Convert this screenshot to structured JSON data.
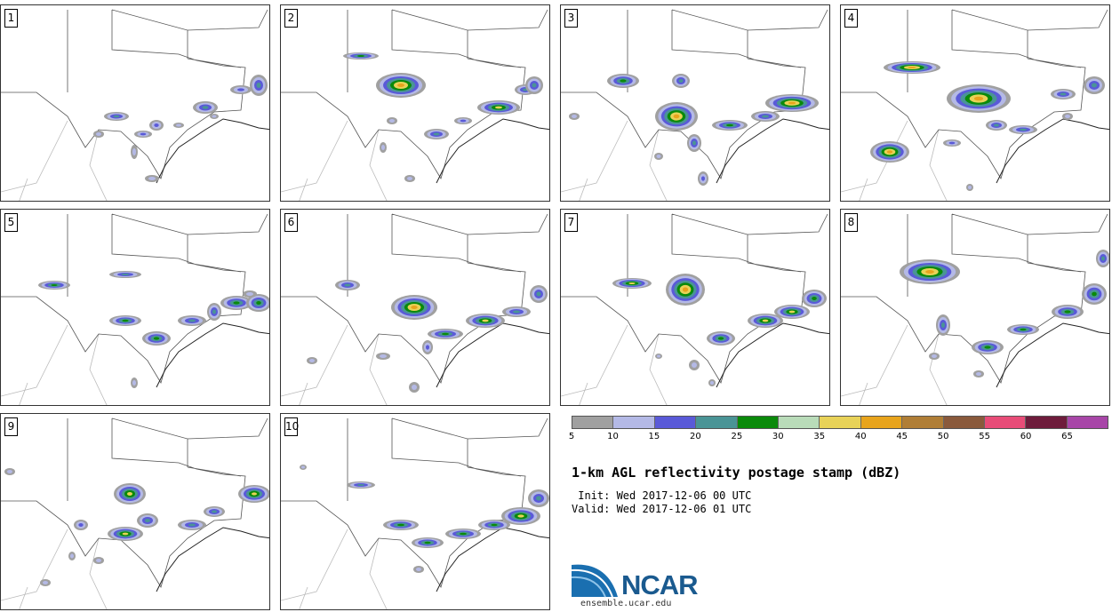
{
  "panels": [
    {
      "label": "1",
      "blobs": [
        [
          130,
          130,
          14,
          5
        ],
        [
          160,
          150,
          10,
          4
        ],
        [
          175,
          140,
          8,
          6
        ],
        [
          230,
          120,
          14,
          7
        ],
        [
          270,
          100,
          12,
          5
        ],
        [
          290,
          95,
          10,
          12
        ],
        [
          150,
          170,
          4,
          8
        ],
        [
          170,
          200,
          8,
          4
        ],
        [
          110,
          150,
          6,
          4
        ],
        [
          240,
          130,
          5,
          3
        ],
        [
          200,
          140,
          6,
          3
        ]
      ]
    },
    {
      "label": "2",
      "blobs": [
        [
          405,
          62,
          20,
          4
        ],
        [
          450,
          95,
          28,
          14
        ],
        [
          440,
          135,
          6,
          4
        ],
        [
          490,
          150,
          14,
          6
        ],
        [
          520,
          135,
          10,
          4
        ],
        [
          560,
          120,
          24,
          8
        ],
        [
          590,
          100,
          12,
          6
        ],
        [
          600,
          95,
          10,
          10
        ],
        [
          460,
          200,
          6,
          4
        ],
        [
          430,
          165,
          4,
          6
        ]
      ]
    },
    {
      "label": "3",
      "blobs": [
        [
          700,
          90,
          18,
          8
        ],
        [
          765,
          90,
          10,
          8
        ],
        [
          760,
          130,
          24,
          16
        ],
        [
          780,
          160,
          8,
          10
        ],
        [
          820,
          140,
          20,
          6
        ],
        [
          860,
          130,
          16,
          6
        ],
        [
          890,
          115,
          30,
          10
        ],
        [
          790,
          200,
          6,
          8
        ],
        [
          740,
          175,
          5,
          4
        ],
        [
          645,
          130,
          6,
          4
        ]
      ]
    },
    {
      "label": "4",
      "blobs": [
        [
          1025,
          75,
          32,
          7
        ],
        [
          1100,
          110,
          36,
          16
        ],
        [
          1120,
          140,
          12,
          6
        ],
        [
          1150,
          145,
          16,
          5
        ],
        [
          1195,
          105,
          14,
          6
        ],
        [
          1230,
          95,
          12,
          10
        ],
        [
          1000,
          170,
          22,
          12
        ],
        [
          1070,
          160,
          10,
          4
        ],
        [
          1090,
          210,
          4,
          4
        ],
        [
          1200,
          130,
          6,
          4
        ]
      ]
    },
    {
      "label": "5",
      "blobs": [
        [
          60,
          320,
          18,
          5
        ],
        [
          140,
          308,
          18,
          4
        ],
        [
          140,
          360,
          18,
          6
        ],
        [
          175,
          380,
          16,
          8
        ],
        [
          215,
          360,
          16,
          6
        ],
        [
          240,
          350,
          8,
          10
        ],
        [
          265,
          340,
          18,
          8
        ],
        [
          290,
          340,
          14,
          10
        ],
        [
          150,
          430,
          4,
          6
        ],
        [
          280,
          330,
          8,
          4
        ]
      ]
    },
    {
      "label": "6",
      "blobs": [
        [
          390,
          320,
          14,
          6
        ],
        [
          465,
          345,
          26,
          14
        ],
        [
          480,
          390,
          6,
          8
        ],
        [
          500,
          375,
          20,
          6
        ],
        [
          545,
          360,
          22,
          8
        ],
        [
          580,
          350,
          16,
          6
        ],
        [
          605,
          330,
          10,
          10
        ],
        [
          350,
          405,
          6,
          4
        ],
        [
          430,
          400,
          8,
          4
        ],
        [
          465,
          435,
          6,
          6
        ]
      ]
    },
    {
      "label": "7",
      "blobs": [
        [
          710,
          318,
          22,
          6
        ],
        [
          770,
          325,
          22,
          18
        ],
        [
          810,
          380,
          16,
          8
        ],
        [
          860,
          360,
          20,
          8
        ],
        [
          890,
          350,
          20,
          8
        ],
        [
          915,
          335,
          14,
          10
        ],
        [
          780,
          410,
          6,
          6
        ],
        [
          800,
          430,
          4,
          4
        ],
        [
          740,
          400,
          4,
          3
        ]
      ]
    },
    {
      "label": "8",
      "blobs": [
        [
          1045,
          305,
          34,
          14
        ],
        [
          1060,
          365,
          8,
          12
        ],
        [
          1110,
          390,
          18,
          8
        ],
        [
          1150,
          370,
          18,
          6
        ],
        [
          1200,
          350,
          18,
          8
        ],
        [
          1230,
          330,
          14,
          12
        ],
        [
          1240,
          290,
          8,
          10
        ],
        [
          1050,
          400,
          6,
          4
        ],
        [
          1100,
          420,
          6,
          4
        ]
      ]
    },
    {
      "label": "9",
      "blobs": [
        [
          145,
          555,
          18,
          12
        ],
        [
          90,
          590,
          8,
          6
        ],
        [
          140,
          600,
          20,
          8
        ],
        [
          165,
          585,
          12,
          8
        ],
        [
          215,
          590,
          16,
          6
        ],
        [
          240,
          575,
          12,
          6
        ],
        [
          285,
          555,
          18,
          10
        ],
        [
          50,
          655,
          6,
          4
        ],
        [
          110,
          630,
          6,
          4
        ],
        [
          80,
          625,
          4,
          5
        ],
        [
          10,
          530,
          6,
          4
        ]
      ]
    },
    {
      "label": "10",
      "blobs": [
        [
          405,
          545,
          16,
          4
        ],
        [
          450,
          590,
          20,
          6
        ],
        [
          480,
          610,
          18,
          6
        ],
        [
          520,
          600,
          20,
          6
        ],
        [
          555,
          590,
          18,
          6
        ],
        [
          585,
          580,
          22,
          10
        ],
        [
          605,
          560,
          12,
          10
        ],
        [
          470,
          640,
          6,
          4
        ],
        [
          340,
          525,
          4,
          3
        ]
      ]
    }
  ],
  "colorbar": {
    "colors": [
      "#a0a0a0",
      "#b4b9e6",
      "#5a5ad8",
      "#4a9496",
      "#0a8a0a",
      "#b9dcb9",
      "#e8d258",
      "#e8a41c",
      "#b07e36",
      "#8a5a3c",
      "#e84c78",
      "#6e1c3c",
      "#a846a8"
    ],
    "ticks": [
      "5",
      "10",
      "15",
      "20",
      "25",
      "30",
      "35",
      "40",
      "45",
      "50",
      "55",
      "60",
      "65"
    ]
  },
  "title": "1-km AGL reflectivity postage stamp (dBZ)",
  "init_text": " Init: Wed 2017-12-06 00 UTC",
  "valid_text": "Valid: Wed 2017-12-06 01 UTC",
  "logo_text": "NCAR",
  "url": "ensemble.ucar.edu"
}
